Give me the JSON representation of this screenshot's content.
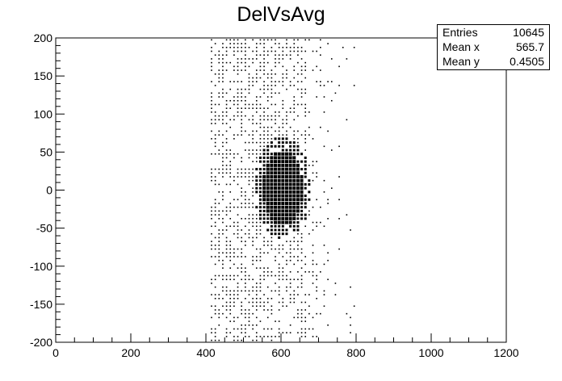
{
  "chart_data": {
    "type": "heatmap",
    "title": "DelVsAvg",
    "xlabel": "",
    "ylabel": "",
    "xlim": [
      0,
      1200
    ],
    "ylim": [
      -200,
      200
    ],
    "x_ticks": [
      "0",
      "200",
      "400",
      "600",
      "800",
      "1000",
      "1200"
    ],
    "y_ticks": [
      "200",
      "150",
      "100",
      "50",
      "0",
      "-50",
      "-100",
      "-150",
      "-200"
    ],
    "stats": [
      {
        "label": "Entries",
        "value": "10645"
      },
      {
        "label": "Mean x",
        "value": "565.7"
      },
      {
        "label": "Mean y",
        "value": "0.4505"
      }
    ],
    "distribution": {
      "x_range": [
        400,
        800
      ],
      "y_range": [
        -200,
        200
      ],
      "dense_core_x": 600,
      "dense_core_y": 0,
      "bin_width_x": 10,
      "bin_width_y": 5
    }
  }
}
